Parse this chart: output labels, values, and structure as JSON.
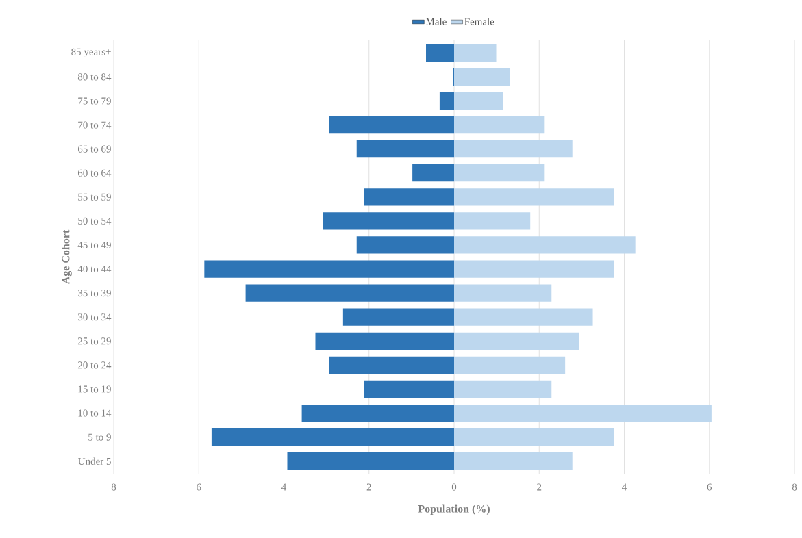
{
  "chart_data": {
    "type": "bar",
    "orientation": "horizontal",
    "stacked": true,
    "categories": [
      "85 years+",
      "80 to 84",
      "75 to 79",
      "70 to 74",
      "65 to 69",
      "60 to 64",
      "55 to 59",
      "50 to 54",
      "45 to 49",
      "40 to 44",
      "35 to 39",
      "30 to 34",
      "25 to 29",
      "20 to 24",
      "15 to 19",
      "10 to 14",
      "5 to 9",
      "Under 5"
    ],
    "series": [
      {
        "name": "Male",
        "color": "#2e75b6",
        "values": [
          -0.66,
          -0.03,
          -0.34,
          -2.93,
          -2.29,
          -0.98,
          -2.11,
          -3.09,
          -2.29,
          -5.87,
          -4.9,
          -2.61,
          -3.26,
          -2.93,
          -2.11,
          -3.58,
          -5.7,
          -3.92
        ]
      },
      {
        "name": "Female",
        "color": "#bdd7ee",
        "values": [
          0.99,
          1.31,
          1.15,
          2.13,
          2.78,
          2.13,
          3.76,
          1.79,
          4.26,
          3.76,
          2.29,
          3.26,
          2.94,
          2.61,
          2.29,
          6.05,
          3.76,
          2.78
        ]
      }
    ],
    "xlim": [
      -8,
      8
    ],
    "xticks": [
      {
        "value": -8,
        "label": "8"
      },
      {
        "value": -6,
        "label": "6"
      },
      {
        "value": -4,
        "label": "4"
      },
      {
        "value": -2,
        "label": "2"
      },
      0,
      2,
      4,
      6,
      8
    ],
    "xlabel": "Population (%)",
    "ylabel": "Age Cohort",
    "grid": "x",
    "legend": "top"
  }
}
